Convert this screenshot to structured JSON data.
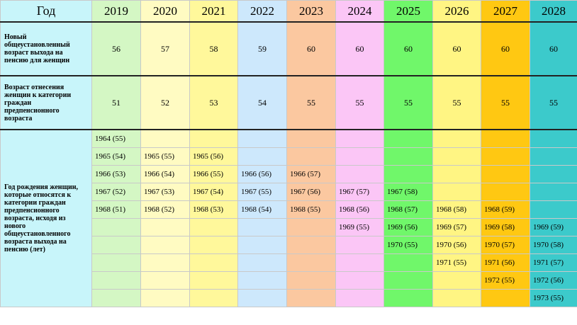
{
  "header": {
    "label": "Год"
  },
  "years": [
    "2019",
    "2020",
    "2021",
    "2022",
    "2023",
    "2024",
    "2025",
    "2026",
    "2027",
    "2028"
  ],
  "colors": {
    "label": "#c8f5fa",
    "cols": [
      "#d4f7c4",
      "#fffbc2",
      "#fff89b",
      "#cde8fc",
      "#fbc8a0",
      "#fbc6f6",
      "#70f76a",
      "#fff583",
      "#ffc812",
      "#3ccacb"
    ]
  },
  "rows": {
    "retirement_age": {
      "label": "Новый общеустановленный возраст выхода на пенсию для женщин",
      "values": [
        "56",
        "57",
        "58",
        "59",
        "60",
        "60",
        "60",
        "60",
        "60",
        "60"
      ]
    },
    "prepension_age": {
      "label": "Возраст отнесения женщин к категории граждан предпенсионного возраста",
      "values": [
        "51",
        "52",
        "53",
        "54",
        "55",
        "55",
        "55",
        "55",
        "55",
        "55"
      ]
    },
    "birth_years": {
      "label": "Год рождения женщин, которые относятся к категории граждан предпенсионного возраста, исходя из нового общеустановленного возраста выхода на пенсию (лет)",
      "grid": [
        [
          "1964 (55)",
          "",
          "",
          "",
          "",
          "",
          "",
          "",
          "",
          ""
        ],
        [
          "1965 (54)",
          "1965 (55)",
          "1965 (56)",
          "",
          "",
          "",
          "",
          "",
          "",
          ""
        ],
        [
          "1966 (53)",
          "1966 (54)",
          "1966 (55)",
          "1966 (56)",
          "1966 (57)",
          "",
          "",
          "",
          "",
          ""
        ],
        [
          "1967 (52)",
          "1967 (53)",
          "1967 (54)",
          "1967 (55)",
          "1967 (56)",
          "1967 (57)",
          "1967 (58)",
          "",
          "",
          ""
        ],
        [
          "1968 (51)",
          "1968 (52)",
          "1968 (53)",
          "1968 (54)",
          "1968 (55)",
          "1968 (56)",
          "1968 (57)",
          "1968 (58)",
          "1968 (59)",
          ""
        ],
        [
          "",
          "",
          "",
          "",
          "",
          "1969 (55)",
          "1969 (56)",
          "1969 (57)",
          "1969 (58)",
          "1969 (59)"
        ],
        [
          "",
          "",
          "",
          "",
          "",
          "",
          "1970 (55)",
          "1970 (56)",
          "1970 (57)",
          "1970 (58)"
        ],
        [
          "",
          "",
          "",
          "",
          "",
          "",
          "",
          "1971 (55)",
          "1971 (56)",
          "1971 (57)"
        ],
        [
          "",
          "",
          "",
          "",
          "",
          "",
          "",
          "",
          "1972 (55)",
          "1972 (56)"
        ],
        [
          "",
          "",
          "",
          "",
          "",
          "",
          "",
          "",
          "",
          "1973 (55)"
        ]
      ]
    }
  }
}
